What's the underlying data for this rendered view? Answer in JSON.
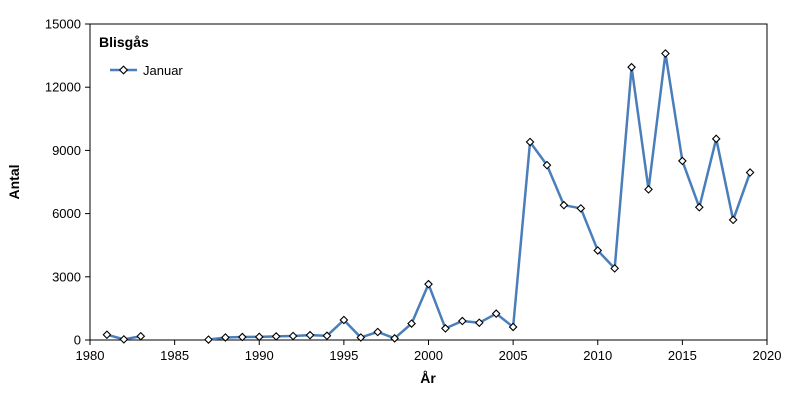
{
  "chart_data": {
    "type": "line",
    "title": "Blisgås",
    "xlabel": "År",
    "ylabel": "Antal",
    "xlim": [
      1980,
      2020
    ],
    "ylim": [
      0,
      15000
    ],
    "x_ticks": [
      1980,
      1985,
      1990,
      1995,
      2000,
      2005,
      2010,
      2015,
      2020
    ],
    "y_ticks": [
      0,
      3000,
      6000,
      9000,
      12000,
      15000
    ],
    "grid": false,
    "legend_position": "top-left",
    "series": [
      {
        "name": "Januar",
        "color": "#4a7ebb",
        "marker": "diamond-open",
        "segments": [
          [
            [
              1981,
              250
            ],
            [
              1982,
              30
            ],
            [
              1983,
              180
            ]
          ],
          [
            [
              1987,
              20
            ],
            [
              1988,
              120
            ],
            [
              1989,
              140
            ],
            [
              1990,
              150
            ],
            [
              1991,
              170
            ],
            [
              1992,
              190
            ],
            [
              1993,
              230
            ],
            [
              1994,
              200
            ],
            [
              1995,
              950
            ],
            [
              1996,
              120
            ],
            [
              1997,
              380
            ],
            [
              1998,
              80
            ],
            [
              1999,
              780
            ],
            [
              2000,
              2650
            ],
            [
              2001,
              550
            ],
            [
              2002,
              900
            ],
            [
              2003,
              820
            ],
            [
              2004,
              1250
            ],
            [
              2005,
              620
            ],
            [
              2006,
              9400
            ],
            [
              2007,
              8300
            ],
            [
              2008,
              6400
            ],
            [
              2009,
              6250
            ],
            [
              2010,
              4250
            ],
            [
              2011,
              3400
            ],
            [
              2012,
              12950
            ],
            [
              2013,
              7150
            ],
            [
              2014,
              13600
            ],
            [
              2015,
              8500
            ],
            [
              2016,
              6300
            ],
            [
              2017,
              9550
            ],
            [
              2018,
              5700
            ],
            [
              2019,
              7950
            ]
          ]
        ]
      }
    ]
  }
}
